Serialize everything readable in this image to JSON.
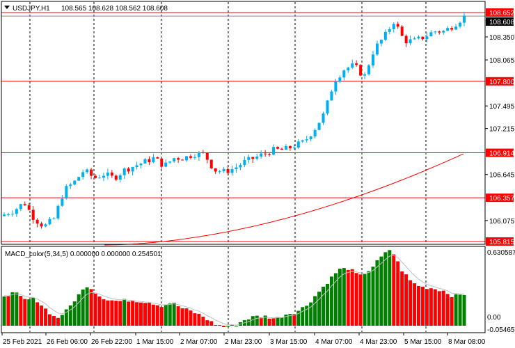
{
  "header": {
    "symbol": "USDJPY,H1",
    "ohlc": "108.565 108.628 108.562 108.608"
  },
  "macd_label": "MACD_color(5,34,5) 0.000000 0.000000 0.254501",
  "colors": {
    "bull": "#00b0f0",
    "bear": "#ff0000",
    "level": "#ff0000",
    "macd_up": "#008000",
    "macd_down": "#ff0000",
    "signal": "#c0c0c0",
    "ma": "#ff0000"
  },
  "chart_data": {
    "type": "candlestick",
    "price_axis_ticks": [
      "108.350",
      "108.065",
      "107.495",
      "107.215",
      "106.645",
      "106.075"
    ],
    "level_lines": [
      "108.652",
      "107.800",
      "106.914",
      "106.357",
      "105.815"
    ],
    "current_price": "108.608",
    "ylim": [
      105.8,
      108.7
    ],
    "time_labels": [
      "25 Feb 2021",
      "26 Feb 06:00",
      "26 Feb 22:00",
      "1 Mar 15:00",
      "2 Mar 07:00",
      "2 Mar 23:00",
      "3 Mar 15:00",
      "4 Mar 07:00",
      "4 Mar 23:00",
      "5 Mar 15:00",
      "8 Mar 08:00"
    ],
    "close_path": [
      106.15,
      106.2,
      106.3,
      106.1,
      106.0,
      106.1,
      106.45,
      106.55,
      106.7,
      106.6,
      106.65,
      106.6,
      106.7,
      106.75,
      106.8,
      106.85,
      106.75,
      106.85,
      106.85,
      106.9,
      106.9,
      106.7,
      106.68,
      106.72,
      106.8,
      106.85,
      106.9,
      106.95,
      106.95,
      107.0,
      107.05,
      107.2,
      107.4,
      107.8,
      107.95,
      108.0,
      107.85,
      108.2,
      108.35,
      108.55,
      108.3,
      108.3,
      108.35,
      108.42,
      108.42,
      108.5,
      108.6
    ],
    "candle_count": 112,
    "macd": {
      "axis_max": "0.630587",
      "axis_zero": "0.00",
      "axis_min": "-0.054655",
      "ylim": [
        -0.054655,
        0.630587
      ],
      "hist_path": [
        0.26,
        0.28,
        0.22,
        0.23,
        0.14,
        0.06,
        0.13,
        0.25,
        0.35,
        0.26,
        0.22,
        0.21,
        0.22,
        0.21,
        0.2,
        0.17,
        0.2,
        0.15,
        0.12,
        0.08,
        0.02,
        -0.01,
        0.0,
        0.05,
        0.08,
        0.08,
        0.06,
        0.1,
        0.12,
        0.18,
        0.28,
        0.38,
        0.48,
        0.49,
        0.42,
        0.48,
        0.58,
        0.66,
        0.48,
        0.37,
        0.33,
        0.32,
        0.3,
        0.25,
        0.27
      ]
    }
  }
}
